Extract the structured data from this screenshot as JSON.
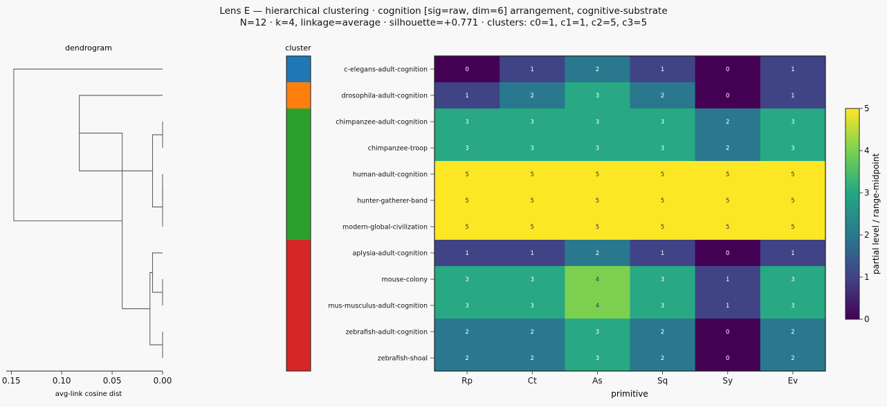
{
  "figure": {
    "title_line1": "Lens E — hierarchical clustering · cognition [sig=raw, dim=6] arrangement, cognitive-substrate",
    "title_line2": "N=12 · k=4, linkage=average · silhouette=+0.771 · clusters: c0=1, c1=1, c2=5, c3=5"
  },
  "chart_data": [
    {
      "type": "dendrogram",
      "title": "dendrogram",
      "xlabel": "avg-link cosine dist",
      "x_ticks": [
        "0.15",
        "0.10",
        "0.05",
        "0.00"
      ],
      "x_tick_values": [
        0.15,
        0.1,
        0.05,
        0.0
      ],
      "xlim": [
        0.155,
        0.0
      ],
      "leaf_order": [
        "c-elegans-adult-cognition",
        "drosophila-adult-cognition",
        "chimpanzee-adult-cognition",
        "chimpanzee-troop",
        "human-adult-cognition",
        "hunter-gatherer-band",
        "modern-global-civilization",
        "aplysia-adult-cognition",
        "mouse-colony",
        "mus-musculus-adult-cognition",
        "zebrafish-adult-cognition",
        "zebrafish-shoal"
      ],
      "merges": [
        {
          "a": 2,
          "b": 3,
          "height": 0.0
        },
        {
          "a": 4,
          "b": 5,
          "height": 0.0
        },
        {
          "a": "m1",
          "b": 6,
          "height": 0.0
        },
        {
          "a": 8,
          "b": 9,
          "height": 0.0
        },
        {
          "a": 10,
          "b": 11,
          "height": 0.0
        },
        {
          "a": "m0",
          "b": "m2",
          "height": 0.01
        },
        {
          "a": 7,
          "b": "m3",
          "height": 0.01
        },
        {
          "a": "m6",
          "b": "m4",
          "height": 0.0125
        },
        {
          "a": 1,
          "b": "m5",
          "height": 0.0825
        },
        {
          "a": "m8",
          "b": "m7",
          "height": 0.04
        },
        {
          "a": 0,
          "b": "m9",
          "height": 0.1475
        }
      ]
    },
    {
      "type": "cluster-strip",
      "title": "cluster",
      "assignments": [
        0,
        1,
        2,
        2,
        2,
        2,
        2,
        3,
        3,
        3,
        3,
        3
      ],
      "colors": [
        "#1f77b4",
        "#ff7f0e",
        "#2ca02c",
        "#d62728"
      ]
    },
    {
      "type": "heatmap",
      "rows": [
        "c-elegans-adult-cognition",
        "drosophila-adult-cognition",
        "chimpanzee-adult-cognition",
        "chimpanzee-troop",
        "human-adult-cognition",
        "hunter-gatherer-band",
        "modern-global-civilization",
        "aplysia-adult-cognition",
        "mouse-colony",
        "mus-musculus-adult-cognition",
        "zebrafish-adult-cognition",
        "zebrafish-shoal"
      ],
      "columns": [
        "Rp",
        "Ct",
        "As",
        "Sq",
        "Sy",
        "Ev"
      ],
      "values": [
        [
          0,
          1,
          2,
          1,
          0,
          1
        ],
        [
          1,
          2,
          3,
          2,
          0,
          1
        ],
        [
          3,
          3,
          3,
          3,
          2,
          3
        ],
        [
          3,
          3,
          3,
          3,
          2,
          3
        ],
        [
          5,
          5,
          5,
          5,
          5,
          5
        ],
        [
          5,
          5,
          5,
          5,
          5,
          5
        ],
        [
          5,
          5,
          5,
          5,
          5,
          5
        ],
        [
          1,
          1,
          2,
          1,
          0,
          1
        ],
        [
          3,
          3,
          4,
          3,
          1,
          3
        ],
        [
          3,
          3,
          4,
          3,
          1,
          3
        ],
        [
          2,
          2,
          3,
          2,
          0,
          2
        ],
        [
          2,
          2,
          3,
          2,
          0,
          2
        ]
      ],
      "xlabel": "primitive",
      "vmin": 0,
      "vmax": 5,
      "colormap": "viridis",
      "colorbar_label": "partial level / range-midpoint",
      "colorbar_ticks": [
        0,
        1,
        2,
        3,
        4,
        5
      ]
    }
  ]
}
